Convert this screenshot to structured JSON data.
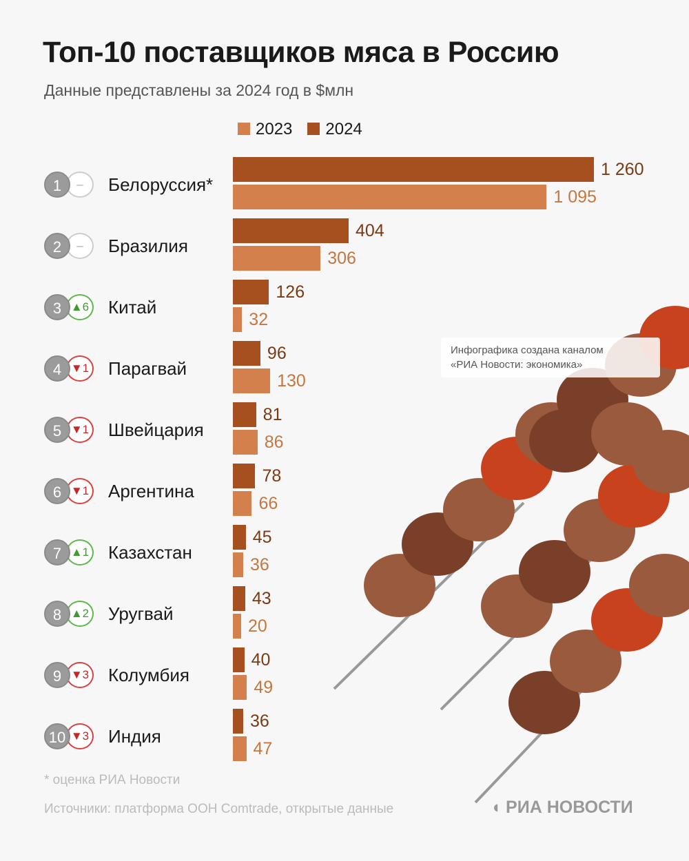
{
  "title": "Топ-10 поставщиков мяса в Россию",
  "subtitle": "Данные представлены за 2024 год в $млн",
  "credit": {
    "line1": "Инфографика создана каналом",
    "line2": "«РИА Новости: экономика»"
  },
  "footnote": "* оценка РИА Новости",
  "sources": "Источники: платформа ООН Comtrade, открытые данные",
  "logo": "РИА НОВОСТИ",
  "colors": {
    "y2024": "#a64f1f",
    "y2023": "#d4804c",
    "label2024": "#7a3a14",
    "label2023": "#c4773f"
  },
  "chart_data": {
    "type": "bar",
    "title": "Топ-10 поставщиков мяса в Россию",
    "unit": "$млн",
    "legend": [
      "2023",
      "2024"
    ],
    "legend_position": "top",
    "categories": [
      "Белоруссия*",
      "Бразилия",
      "Китай",
      "Парагвай",
      "Швейцария",
      "Аргентина",
      "Казахстан",
      "Уругвай",
      "Колумбия",
      "Индия"
    ],
    "ranks": [
      "1",
      "2",
      "3",
      "4",
      "5",
      "6",
      "7",
      "8",
      "9",
      "10"
    ],
    "rank_change": [
      {
        "dir": "same",
        "text": "–"
      },
      {
        "dir": "same",
        "text": "–"
      },
      {
        "dir": "up",
        "text": "▲6"
      },
      {
        "dir": "down",
        "text": "▼1"
      },
      {
        "dir": "down",
        "text": "▼1"
      },
      {
        "dir": "down",
        "text": "▼1"
      },
      {
        "dir": "up",
        "text": "▲1"
      },
      {
        "dir": "up",
        "text": "▲2"
      },
      {
        "dir": "down",
        "text": "▼3"
      },
      {
        "dir": "down",
        "text": "▼3"
      }
    ],
    "series": [
      {
        "name": "2024",
        "values": [
          1260,
          404,
          126,
          96,
          81,
          78,
          45,
          43,
          40,
          36
        ],
        "labels": [
          "1 260",
          "404",
          "126",
          "96",
          "81",
          "78",
          "45",
          "43",
          "40",
          "36"
        ]
      },
      {
        "name": "2023",
        "values": [
          1095,
          306,
          32,
          130,
          86,
          66,
          36,
          20,
          49,
          47
        ],
        "labels": [
          "1 095",
          "306",
          "32",
          "130",
          "86",
          "66",
          "36",
          "20",
          "49",
          "47"
        ]
      }
    ],
    "xlim": [
      0,
      1260
    ]
  }
}
